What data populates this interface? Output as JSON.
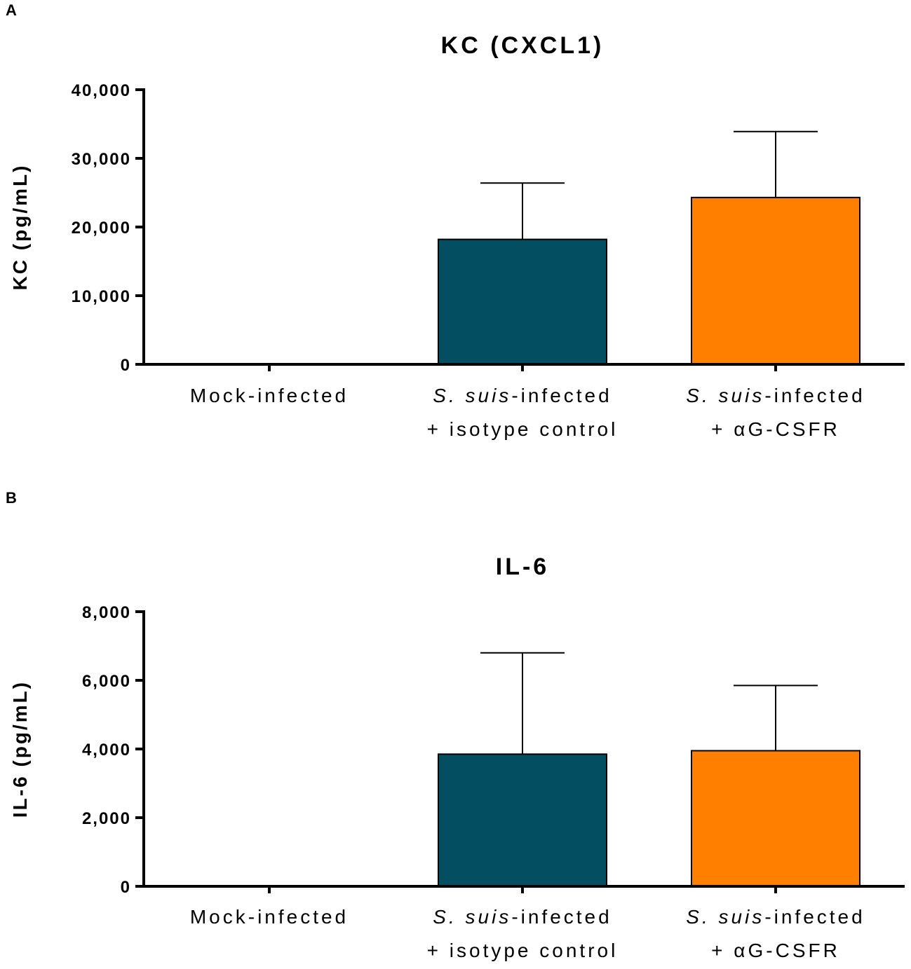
{
  "panels": [
    {
      "letter": "A",
      "chart_data": {
        "type": "bar",
        "title": "KC (CXCL1)",
        "ylabel": "KC (pg/mL)",
        "xlabel": "",
        "ylim": [
          0,
          40000
        ],
        "yticks": [
          0,
          10000,
          20000,
          30000,
          40000
        ],
        "ytick_labels": [
          "0",
          "10,000",
          "20,000",
          "30,000",
          "40,000"
        ],
        "categories": [
          {
            "italic": "",
            "line1": "Mock-infected",
            "line2": ""
          },
          {
            "italic": "S. suis",
            "line1": "-infected",
            "line2": "+ isotype control"
          },
          {
            "italic": "S. suis",
            "line1": "-infected",
            "line2": "+ αG-CSFR"
          }
        ],
        "values": [
          0,
          18200,
          24300
        ],
        "errors": [
          0,
          8200,
          9600
        ],
        "colors": [
          "#ffffff",
          "#044e62",
          "#ff8000"
        ]
      }
    },
    {
      "letter": "B",
      "chart_data": {
        "type": "bar",
        "title": "IL-6",
        "ylabel": "IL-6 (pg/mL)",
        "xlabel": "",
        "ylim": [
          0,
          8000
        ],
        "yticks": [
          0,
          2000,
          4000,
          6000,
          8000
        ],
        "ytick_labels": [
          "0",
          "2,000",
          "4,000",
          "6,000",
          "8,000"
        ],
        "categories": [
          {
            "italic": "",
            "line1": "Mock-infected",
            "line2": ""
          },
          {
            "italic": "S. suis",
            "line1": "-infected",
            "line2": "+ isotype control"
          },
          {
            "italic": "S. suis",
            "line1": "-infected",
            "line2": "+ αG-CSFR"
          }
        ],
        "values": [
          0,
          3850,
          3950
        ],
        "errors": [
          0,
          2950,
          1900
        ],
        "colors": [
          "#ffffff",
          "#044e62",
          "#ff8000"
        ]
      }
    }
  ]
}
